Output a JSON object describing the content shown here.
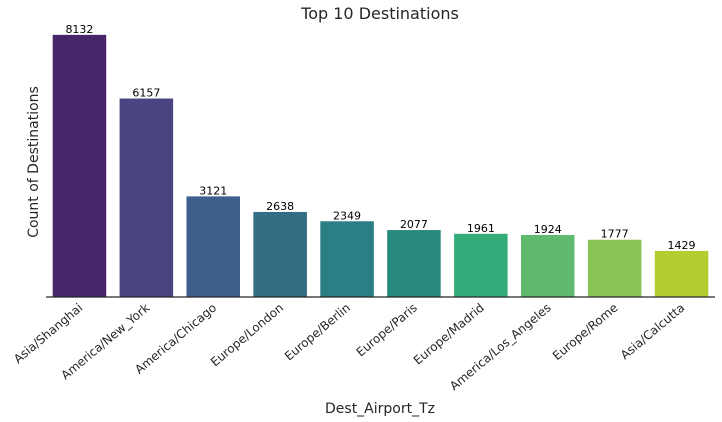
{
  "chart_data": {
    "type": "bar",
    "title": "Top 10 Destinations",
    "xlabel": "Dest_Airport_Tz",
    "ylabel": "Count of Destinations",
    "categories": [
      "Asia/Shanghai",
      "America/New_York",
      "America/Chicago",
      "Europe/London",
      "Europe/Berlin",
      "Europe/Paris",
      "Europe/Madrid",
      "America/Los_Angeles",
      "Europe/Rome",
      "Asia/Calcutta"
    ],
    "values": [
      8132,
      6157,
      3121,
      2638,
      2349,
      2077,
      1961,
      1924,
      1777,
      1429
    ],
    "colors": [
      "#48246b",
      "#4a4480",
      "#3e5f8b",
      "#336e84",
      "#2a7e84",
      "#288a7e",
      "#35ad7a",
      "#5fba6e",
      "#8ac456",
      "#b4cc2f"
    ],
    "ylim": [
      0,
      8500
    ],
    "grid": false,
    "legend": "none"
  }
}
